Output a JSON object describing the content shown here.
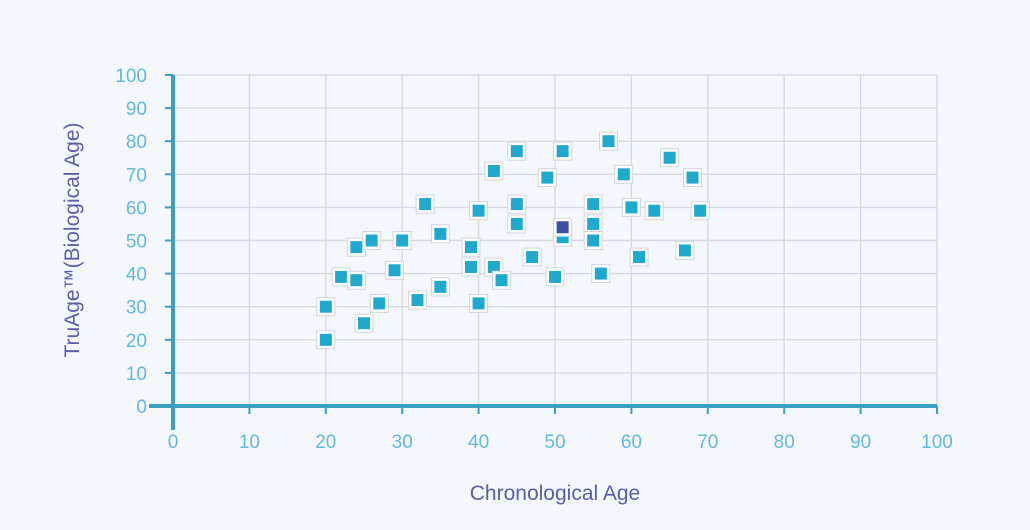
{
  "chart_data": {
    "type": "scatter",
    "xlabel": "Chronological Age",
    "ylabel": "TruAge™(Biological Age)",
    "xlim": [
      0,
      100
    ],
    "ylim": [
      0,
      100
    ],
    "xticks": [
      0,
      10,
      20,
      30,
      40,
      50,
      60,
      70,
      80,
      90,
      100
    ],
    "yticks": [
      0,
      10,
      20,
      30,
      40,
      50,
      60,
      70,
      80,
      90,
      100
    ],
    "grid": true,
    "colors": {
      "point": "#1fa9cf",
      "highlight_point": "#3d4fa3",
      "axis": "#3b9fc0",
      "tick_label": "#62b9da",
      "axis_title": "#5b5ea8",
      "grid": "#d6dadf"
    },
    "series": [
      {
        "points": [
          [
            20,
            30
          ],
          [
            20,
            20
          ],
          [
            22,
            39
          ],
          [
            24,
            48
          ],
          [
            24,
            38
          ],
          [
            25,
            25
          ],
          [
            26,
            50
          ],
          [
            27,
            31
          ],
          [
            29,
            41
          ],
          [
            30,
            50
          ],
          [
            32,
            32
          ],
          [
            33,
            61
          ],
          [
            35,
            52
          ],
          [
            35,
            36
          ],
          [
            39,
            48
          ],
          [
            39,
            42
          ],
          [
            40,
            59
          ],
          [
            40,
            31
          ],
          [
            42,
            71
          ],
          [
            42,
            42
          ],
          [
            43,
            38
          ],
          [
            45,
            77
          ],
          [
            45,
            61
          ],
          [
            45,
            55
          ],
          [
            47,
            45
          ],
          [
            49,
            69
          ],
          [
            50,
            39
          ],
          [
            51,
            77
          ],
          [
            51,
            51
          ],
          [
            55,
            61
          ],
          [
            55,
            55
          ],
          [
            55,
            50
          ],
          [
            56,
            40
          ],
          [
            57,
            80
          ],
          [
            59,
            70
          ],
          [
            60,
            60
          ],
          [
            61,
            45
          ],
          [
            63,
            59
          ],
          [
            65,
            75
          ],
          [
            67,
            47
          ],
          [
            68,
            69
          ],
          [
            69,
            59
          ]
        ]
      }
    ],
    "highlight_points": [
      [
        51,
        54
      ]
    ]
  }
}
